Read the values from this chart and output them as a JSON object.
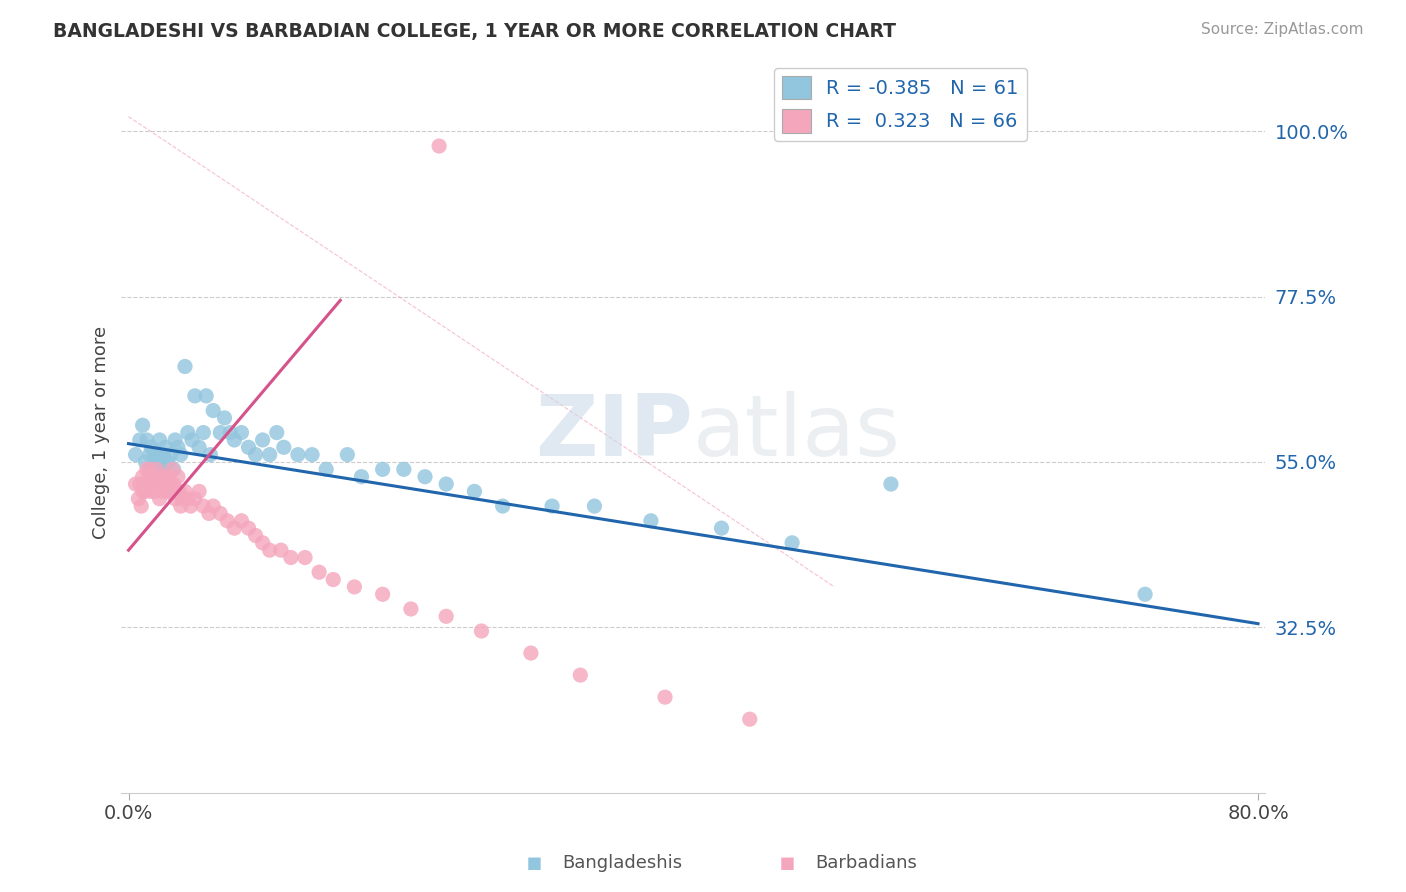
{
  "title": "BANGLADESHI VS BARBADIAN COLLEGE, 1 YEAR OR MORE CORRELATION CHART",
  "source": "Source: ZipAtlas.com",
  "ylabel": "College, 1 year or more",
  "xlim": [
    0.0,
    0.8
  ],
  "ylim": [
    0.1,
    1.08
  ],
  "xtick_vals": [
    0.0,
    0.8
  ],
  "xtick_labels": [
    "0.0%",
    "80.0%"
  ],
  "ytick_vals": [
    0.325,
    0.55,
    0.775,
    1.0
  ],
  "ytick_labels": [
    "32.5%",
    "55.0%",
    "77.5%",
    "100.0%"
  ],
  "legend_R1": "-0.385",
  "legend_N1": "61",
  "legend_R2": "0.323",
  "legend_N2": "66",
  "blue_color": "#92C5DE",
  "pink_color": "#F4A6BC",
  "line_blue": "#2166AC",
  "line_pink": "#D6528A",
  "watermark_color": "#C8D8E8",
  "bangladeshi_x": [
    0.005,
    0.008,
    0.01,
    0.012,
    0.013,
    0.015,
    0.015,
    0.016,
    0.018,
    0.019,
    0.02,
    0.021,
    0.022,
    0.023,
    0.024,
    0.025,
    0.026,
    0.028,
    0.03,
    0.032,
    0.033,
    0.035,
    0.037,
    0.04,
    0.042,
    0.045,
    0.047,
    0.05,
    0.053,
    0.055,
    0.058,
    0.06,
    0.065,
    0.068,
    0.072,
    0.075,
    0.08,
    0.085,
    0.09,
    0.095,
    0.1,
    0.105,
    0.11,
    0.12,
    0.13,
    0.14,
    0.155,
    0.165,
    0.18,
    0.195,
    0.21,
    0.225,
    0.245,
    0.265,
    0.3,
    0.33,
    0.37,
    0.42,
    0.47,
    0.54,
    0.72
  ],
  "bangladeshi_y": [
    0.56,
    0.58,
    0.6,
    0.55,
    0.58,
    0.54,
    0.56,
    0.57,
    0.54,
    0.56,
    0.55,
    0.56,
    0.58,
    0.54,
    0.55,
    0.56,
    0.57,
    0.55,
    0.56,
    0.54,
    0.58,
    0.57,
    0.56,
    0.68,
    0.59,
    0.58,
    0.64,
    0.57,
    0.59,
    0.64,
    0.56,
    0.62,
    0.59,
    0.61,
    0.59,
    0.58,
    0.59,
    0.57,
    0.56,
    0.58,
    0.56,
    0.59,
    0.57,
    0.56,
    0.56,
    0.54,
    0.56,
    0.53,
    0.54,
    0.54,
    0.53,
    0.52,
    0.51,
    0.49,
    0.49,
    0.49,
    0.47,
    0.46,
    0.44,
    0.52,
    0.37
  ],
  "barbadian_x": [
    0.005,
    0.007,
    0.008,
    0.009,
    0.01,
    0.01,
    0.011,
    0.012,
    0.013,
    0.014,
    0.015,
    0.015,
    0.016,
    0.017,
    0.018,
    0.019,
    0.02,
    0.021,
    0.022,
    0.023,
    0.024,
    0.025,
    0.026,
    0.027,
    0.028,
    0.029,
    0.03,
    0.031,
    0.032,
    0.033,
    0.034,
    0.035,
    0.036,
    0.037,
    0.038,
    0.04,
    0.042,
    0.044,
    0.047,
    0.05,
    0.053,
    0.057,
    0.06,
    0.065,
    0.07,
    0.075,
    0.08,
    0.085,
    0.09,
    0.095,
    0.1,
    0.108,
    0.115,
    0.125,
    0.135,
    0.145,
    0.16,
    0.18,
    0.2,
    0.225,
    0.25,
    0.285,
    0.32,
    0.38,
    0.44,
    0.22
  ],
  "barbadian_y": [
    0.52,
    0.5,
    0.52,
    0.49,
    0.51,
    0.53,
    0.52,
    0.51,
    0.54,
    0.52,
    0.53,
    0.54,
    0.51,
    0.52,
    0.53,
    0.51,
    0.54,
    0.53,
    0.5,
    0.52,
    0.51,
    0.53,
    0.52,
    0.51,
    0.53,
    0.52,
    0.51,
    0.54,
    0.52,
    0.5,
    0.51,
    0.53,
    0.51,
    0.49,
    0.5,
    0.51,
    0.5,
    0.49,
    0.5,
    0.51,
    0.49,
    0.48,
    0.49,
    0.48,
    0.47,
    0.46,
    0.47,
    0.46,
    0.45,
    0.44,
    0.43,
    0.43,
    0.42,
    0.42,
    0.4,
    0.39,
    0.38,
    0.37,
    0.35,
    0.34,
    0.32,
    0.29,
    0.26,
    0.23,
    0.2,
    0.98
  ]
}
